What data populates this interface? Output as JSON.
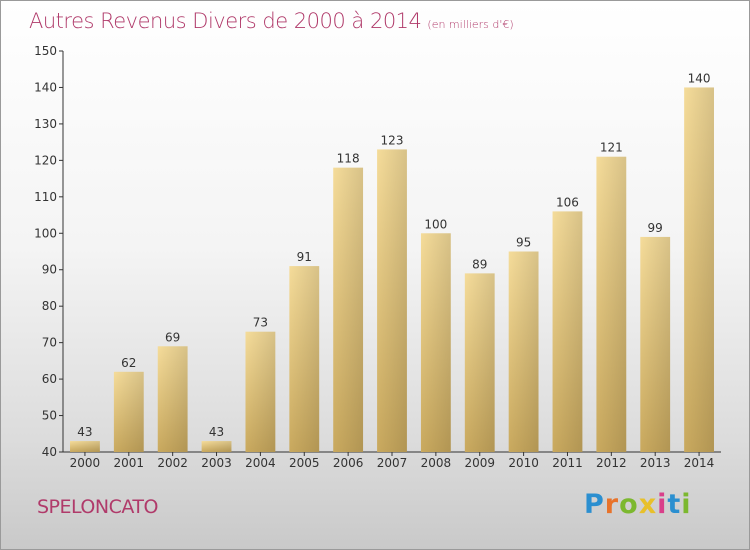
{
  "chart_data": {
    "type": "bar",
    "title": "Autres Revenus Divers de 2000 à 2014",
    "unit_note": "(en milliers d'€)",
    "categories": [
      "2000",
      "2001",
      "2002",
      "2003",
      "2004",
      "2005",
      "2006",
      "2007",
      "2008",
      "2009",
      "2010",
      "2011",
      "2012",
      "2013",
      "2014"
    ],
    "values": [
      43,
      62,
      69,
      43,
      73,
      91,
      118,
      123,
      100,
      89,
      95,
      106,
      121,
      99,
      140
    ],
    "ylim": [
      40,
      150
    ],
    "yticks": [
      40,
      50,
      60,
      70,
      80,
      90,
      100,
      110,
      120,
      130,
      140,
      150
    ],
    "grid": false,
    "bar_color": "#e8c978"
  },
  "commune": "SPELONCATO",
  "logo": {
    "letters": [
      "P",
      "r",
      "o",
      "x",
      "i",
      "t",
      "i"
    ],
    "colors": [
      "#2b8fd0",
      "#e8732a",
      "#7cb82f",
      "#e8c02a",
      "#d93f8a",
      "#2b8fd0",
      "#7cb82f"
    ]
  }
}
